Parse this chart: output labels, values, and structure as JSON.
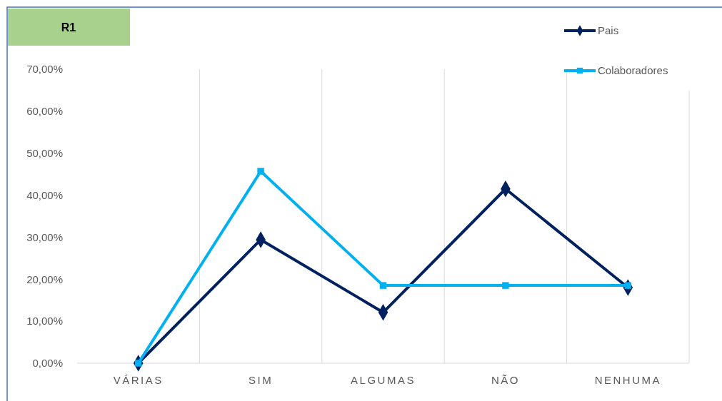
{
  "chart_data": {
    "type": "line",
    "title": "R1",
    "categories": [
      "VÁRIAS",
      "SIM",
      "ALGUMAS",
      "NÃO",
      "NENHUMA"
    ],
    "series": [
      {
        "name": "Pais",
        "color": "#002060",
        "marker": "diamond",
        "values": [
          0,
          29.4,
          12.1,
          41.5,
          18.0
        ]
      },
      {
        "name": "Colaboradores",
        "color": "#00b0f0",
        "marker": "square",
        "values": [
          0,
          45.7,
          18.5,
          18.5,
          18.5
        ]
      }
    ],
    "ylim": [
      0,
      70
    ],
    "yticks": [
      {
        "value": 0,
        "label": "0,00%"
      },
      {
        "value": 10,
        "label": "10,00%"
      },
      {
        "value": 20,
        "label": "20,00%"
      },
      {
        "value": 30,
        "label": "30,00%"
      },
      {
        "value": 40,
        "label": "40,00%"
      },
      {
        "value": 50,
        "label": "50,00%"
      },
      {
        "value": 60,
        "label": "60,00%"
      },
      {
        "value": 70,
        "label": "70,00%"
      }
    ],
    "grid": "x",
    "legend": "top right"
  }
}
